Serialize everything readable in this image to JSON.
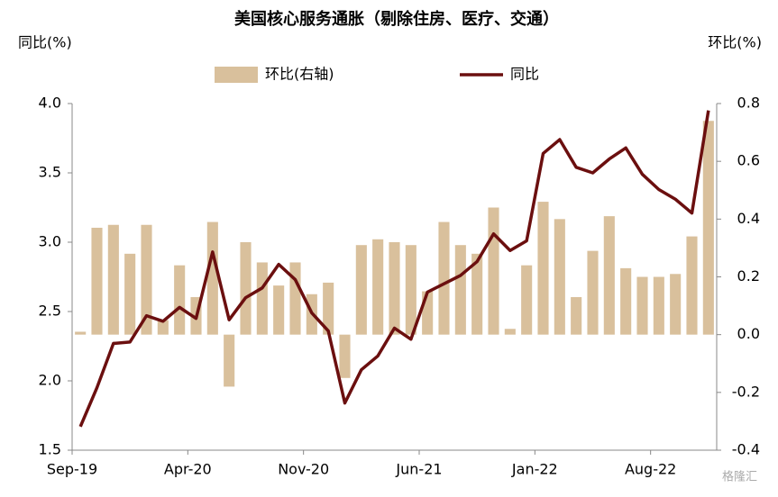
{
  "chart_data": {
    "type": "combo",
    "title": "美国核心服务通胀（剔除住房、医疗、交通）",
    "y_label": "同比(%)",
    "y2_label": "环比(%)",
    "categories": [
      "Sep-19",
      null,
      null,
      null,
      null,
      null,
      null,
      "Apr-20",
      null,
      null,
      null,
      null,
      null,
      null,
      "Nov-20",
      null,
      null,
      null,
      null,
      null,
      null,
      "Jun-21",
      null,
      null,
      null,
      null,
      null,
      null,
      "Jan-22",
      null,
      null,
      null,
      null,
      null,
      null,
      "Aug-22",
      null,
      null,
      null
    ],
    "series": [
      {
        "name": "环比(右轴)",
        "type": "bar",
        "axis": "y2",
        "color": "#d9c09c",
        "values": [
          0.01,
          0.37,
          0.38,
          0.28,
          0.38,
          0.05,
          0.24,
          0.13,
          0.39,
          -0.18,
          0.32,
          0.25,
          0.17,
          0.25,
          0.14,
          0.18,
          -0.15,
          0.31,
          0.33,
          0.32,
          0.31,
          0.15,
          0.39,
          0.31,
          0.28,
          0.44,
          0.02,
          0.24,
          0.46,
          0.4,
          0.13,
          0.29,
          0.41,
          0.23,
          0.2,
          0.2,
          0.21,
          0.34,
          0.74
        ]
      },
      {
        "name": "同比",
        "type": "line",
        "axis": "y",
        "color": "#6b0f0f",
        "values": [
          1.67,
          1.95,
          2.27,
          2.28,
          2.47,
          2.43,
          2.53,
          2.45,
          2.93,
          2.44,
          2.6,
          2.67,
          2.84,
          2.73,
          2.49,
          2.36,
          1.84,
          2.08,
          2.18,
          2.38,
          2.3,
          2.64,
          2.7,
          2.76,
          2.86,
          3.06,
          2.94,
          3.01,
          3.64,
          3.74,
          3.54,
          3.5,
          3.6,
          3.68,
          3.49,
          3.38,
          3.31,
          3.21,
          3.95
        ]
      }
    ],
    "ylim": [
      1.5,
      4.0
    ],
    "yticks": [
      1.5,
      {
        "value": 2,
        "label": "2.0"
      },
      2.5,
      {
        "value": 3,
        "label": "3.0"
      },
      3.5,
      {
        "value": 4,
        "label": "4.0"
      }
    ],
    "y2lim": [
      -0.4,
      0.8
    ],
    "y2ticks": [
      -0.4,
      -0.2,
      {
        "value": 0,
        "label": "0.0"
      },
      0.2,
      0.4,
      0.6,
      0.8
    ],
    "grid": false,
    "legend": "top",
    "watermark": "格隆汇"
  }
}
